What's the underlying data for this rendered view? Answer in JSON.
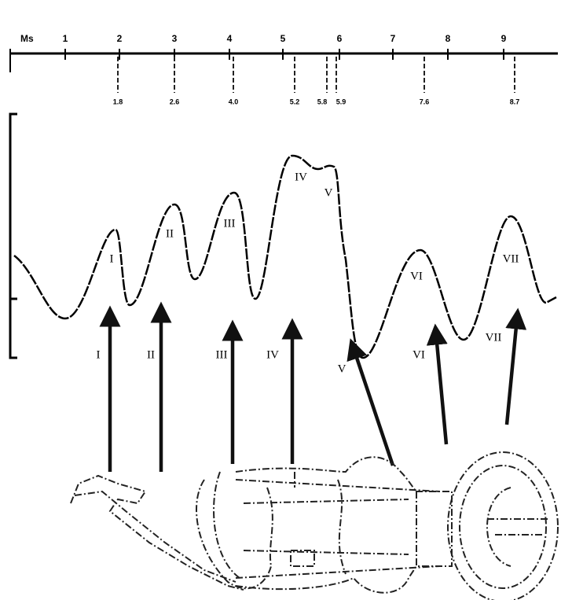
{
  "axis": {
    "unit": "Ms",
    "ticks": [
      "1",
      "2",
      "3",
      "4",
      "5",
      "6",
      "7",
      "8",
      "9"
    ]
  },
  "latencies": [
    "1.8",
    "2.6",
    "4.0",
    "5.2",
    "5.8",
    "5.9",
    "7.6",
    "8.7"
  ],
  "waveform_peaks": [
    "I",
    "II",
    "III",
    "IV",
    "V",
    "VI",
    "VII"
  ],
  "arrows": [
    "I",
    "II",
    "III",
    "IV",
    "V",
    "VI",
    "VII"
  ]
}
